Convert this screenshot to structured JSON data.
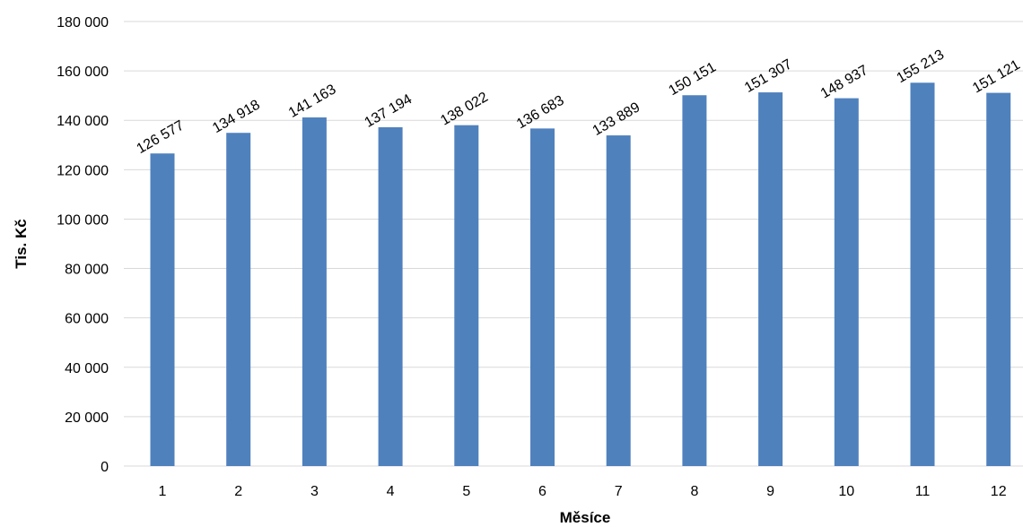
{
  "chart_data": {
    "type": "bar",
    "categories": [
      "1",
      "2",
      "3",
      "4",
      "5",
      "6",
      "7",
      "8",
      "9",
      "10",
      "11",
      "12"
    ],
    "values": [
      126577,
      134918,
      141163,
      137194,
      138022,
      136683,
      133889,
      150151,
      151307,
      148937,
      155213,
      151121
    ],
    "data_labels": [
      "126 577",
      "134 918",
      "141 163",
      "137 194",
      "138 022",
      "136 683",
      "133 889",
      "150 151",
      "151 307",
      "148 937",
      "155 213",
      "151 121"
    ],
    "xlabel": "Měsíce",
    "ylabel": "Tis. Kč",
    "ylim": [
      0,
      180000
    ],
    "yticks": [
      0,
      20000,
      40000,
      60000,
      80000,
      100000,
      120000,
      140000,
      160000,
      180000
    ],
    "ytick_labels": [
      "0",
      "20 000",
      "40 000",
      "60 000",
      "80 000",
      "100 000",
      "120 000",
      "140 000",
      "160 000",
      "180 000"
    ],
    "grid": true,
    "bar_color": "#4f81bd",
    "grid_color": "#d9d9d9"
  }
}
